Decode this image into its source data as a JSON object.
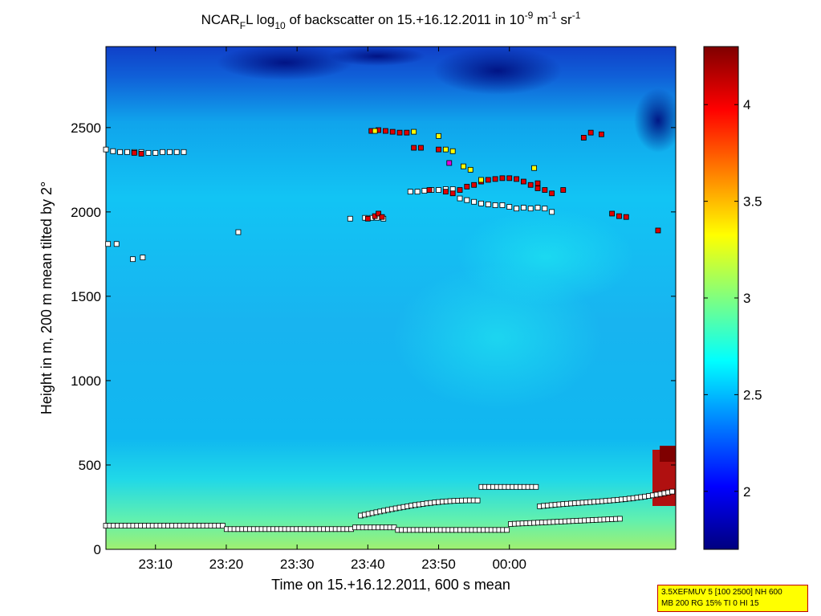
{
  "chart_data": {
    "type": "heatmap",
    "title_parts": {
      "a": "NCAR",
      "a_sub": "F",
      "b": "L log",
      "b_sub": "10",
      "c": " of backscatter on 15.+16.12.2011 in 10",
      "c_sup": "-9",
      "d": " m",
      "d_sup": "-1",
      "e": " sr",
      "e_sup": "-1"
    },
    "xlabel": "Time on 15.+16.12.2011, 600 s mean",
    "ylabel": "Height in m, 200 m mean tilted by 2°",
    "xlim_minutes": [
      23.0,
      63.5
    ],
    "ylim": [
      0,
      2980
    ],
    "x_ticks": [
      {
        "t": 30,
        "label": "23:10"
      },
      {
        "t": 40,
        "label": "23:20"
      },
      {
        "t": 50,
        "label": "23:30"
      },
      {
        "t": 60,
        "label": "23:40"
      },
      {
        "t": 70,
        "label": "23:50"
      },
      {
        "t": 80,
        "label": "00:00"
      }
    ],
    "y_ticks": [
      0,
      500,
      1000,
      1500,
      2000,
      2500
    ],
    "colorbar": {
      "range": [
        1.7,
        4.3
      ],
      "ticks": [
        2,
        2.5,
        3,
        3.5,
        4
      ]
    },
    "series": [
      {
        "marker": "white",
        "points": [
          [
            23,
            2370
          ],
          [
            24,
            2360
          ],
          [
            25,
            2355
          ],
          [
            26,
            2355
          ],
          [
            27,
            2355
          ],
          [
            28,
            2355
          ],
          [
            29,
            2350
          ],
          [
            30,
            2350
          ],
          [
            31,
            2355
          ],
          [
            32,
            2355
          ],
          [
            33,
            2355
          ],
          [
            34,
            2355
          ],
          [
            23.3,
            1810
          ],
          [
            24.5,
            1810
          ],
          [
            26.8,
            1720
          ],
          [
            28.2,
            1730
          ],
          [
            57.5,
            1960
          ],
          [
            59.6,
            1965
          ],
          [
            60.5,
            1965
          ],
          [
            61.3,
            1965
          ],
          [
            62.2,
            1960
          ],
          [
            41.7,
            1880
          ],
          [
            66,
            2120
          ],
          [
            67,
            2120
          ],
          [
            68,
            2125
          ],
          [
            69,
            2130
          ],
          [
            70,
            2130
          ],
          [
            71,
            2135
          ],
          [
            72,
            2135
          ],
          [
            73,
            2080
          ],
          [
            74,
            2070
          ],
          [
            75,
            2060
          ],
          [
            76,
            2050
          ],
          [
            77,
            2045
          ],
          [
            78,
            2040
          ],
          [
            79,
            2040
          ],
          [
            80,
            2030
          ],
          [
            81,
            2020
          ],
          [
            82,
            2025
          ],
          [
            83,
            2020
          ],
          [
            84,
            2025
          ],
          [
            85,
            2020
          ],
          [
            86,
            2000
          ]
        ]
      },
      {
        "marker": "red",
        "points": [
          [
            27,
            2350
          ],
          [
            28,
            2345
          ],
          [
            60,
            1960
          ],
          [
            61,
            1975
          ],
          [
            61.5,
            1990
          ],
          [
            62,
            1970
          ],
          [
            60.5,
            2480
          ],
          [
            61.5,
            2485
          ],
          [
            62.5,
            2480
          ],
          [
            63.5,
            2475
          ],
          [
            64.5,
            2470
          ],
          [
            65.5,
            2470
          ],
          [
            66.5,
            2380
          ],
          [
            67.5,
            2380
          ],
          [
            68.7,
            2130
          ],
          [
            70,
            2370
          ],
          [
            71,
            2120
          ],
          [
            72,
            2110
          ],
          [
            73,
            2130
          ],
          [
            74,
            2150
          ],
          [
            75,
            2160
          ],
          [
            76,
            2180
          ],
          [
            77,
            2190
          ],
          [
            78,
            2195
          ],
          [
            79,
            2200
          ],
          [
            80,
            2200
          ],
          [
            81,
            2195
          ],
          [
            82,
            2180
          ],
          [
            83,
            2160
          ],
          [
            84,
            2140
          ],
          [
            85,
            2130
          ],
          [
            86,
            2110
          ],
          [
            84,
            2170
          ],
          [
            87.6,
            2130
          ],
          [
            90.5,
            2440
          ],
          [
            91.5,
            2470
          ],
          [
            93,
            2460
          ],
          [
            94.5,
            1990
          ],
          [
            95.5,
            1975
          ],
          [
            96.5,
            1970
          ],
          [
            101,
            1890
          ]
        ]
      },
      {
        "marker": "yellow",
        "points": [
          [
            61,
            2480
          ],
          [
            66.5,
            2475
          ],
          [
            70,
            2450
          ],
          [
            71,
            2370
          ],
          [
            72,
            2360
          ],
          [
            73.5,
            2270
          ],
          [
            74.5,
            2250
          ],
          [
            76,
            2190
          ],
          [
            83.5,
            2260
          ]
        ]
      },
      {
        "marker": "magenta",
        "points": [
          [
            71.5,
            2290
          ]
        ]
      }
    ]
  },
  "info_box": {
    "line1": "3.5XEFMUV 5 [100 2500] NH 600",
    "line2": "MB 200 RG 15% TI 0 HI 15"
  }
}
